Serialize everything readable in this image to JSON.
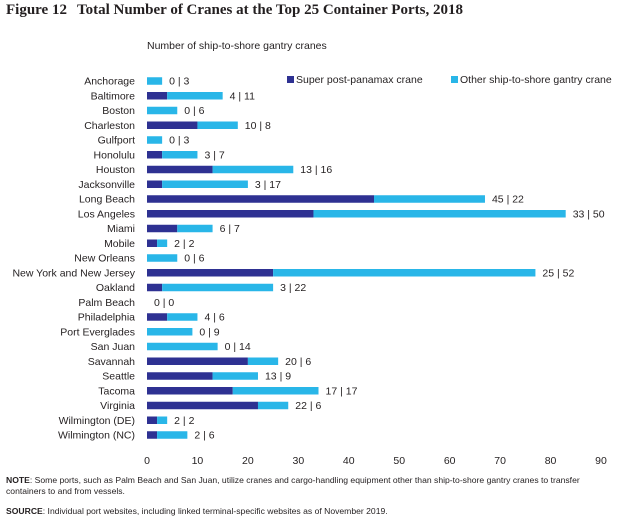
{
  "figure_label": "Figure 12",
  "title": "Total Number of Cranes at the Top 25 Container Ports, 2018",
  "subtitle": "Number of ship-to-shore gantry cranes",
  "note_label": "NOTE",
  "note_text": ": Some ports, such as Palm Beach and San Juan, utilize cranes and cargo-handling equipment other than ship-to-shore gantry cranes to transfer containers to and from vessels.",
  "source_label": "SOURCE",
  "source_text": ": Individual port websites, including linked terminal-specific websites as of November 2019.",
  "colors": {
    "super": "#2e3192",
    "other": "#29b6e8"
  },
  "chart_data": {
    "type": "bar",
    "orientation": "horizontal",
    "stacked": true,
    "categories": [
      "Anchorage",
      "Baltimore",
      "Boston",
      "Charleston",
      "Gulfport",
      "Honolulu",
      "Houston",
      "Jacksonville",
      "Long Beach",
      "Los Angeles",
      "Miami",
      "Mobile",
      "New Orleans",
      "New York and New Jersey",
      "Oakland",
      "Palm Beach",
      "Philadelphia",
      "Port Everglades",
      "San Juan",
      "Savannah",
      "Seattle",
      "Tacoma",
      "Virginia",
      "Wilmington (DE)",
      "Wilmington (NC)"
    ],
    "series": [
      {
        "name": "Super post-panamax crane",
        "values": [
          0,
          4,
          0,
          10,
          0,
          3,
          13,
          3,
          45,
          33,
          6,
          2,
          0,
          25,
          3,
          0,
          4,
          0,
          0,
          20,
          13,
          17,
          22,
          2,
          2
        ]
      },
      {
        "name": "Other ship-to-shore gantry crane",
        "values": [
          3,
          11,
          6,
          8,
          3,
          7,
          16,
          17,
          22,
          50,
          7,
          2,
          6,
          52,
          22,
          0,
          6,
          9,
          14,
          6,
          9,
          17,
          6,
          2,
          6
        ]
      }
    ],
    "data_labels": [
      "0 | 3",
      "4 | 11",
      "0 | 6",
      "10 | 8",
      "0 | 3",
      "3 | 7",
      "13 | 16",
      "3 | 17",
      "45 | 22",
      "33 | 50",
      "6 | 7",
      "2 | 2",
      "0 | 6",
      "25 | 52",
      "3 | 22",
      "0 | 0",
      "4 | 6",
      "0 | 9",
      "0 | 14",
      "20 | 6",
      "13 | 9",
      "17 | 17",
      "22 | 6",
      "2 | 2",
      "2 | 6"
    ],
    "x_ticks": [
      0,
      10,
      20,
      30,
      40,
      50,
      60,
      70,
      80,
      90
    ],
    "xlim": [
      0,
      90
    ],
    "grid": false,
    "legend_position": "top-right"
  }
}
